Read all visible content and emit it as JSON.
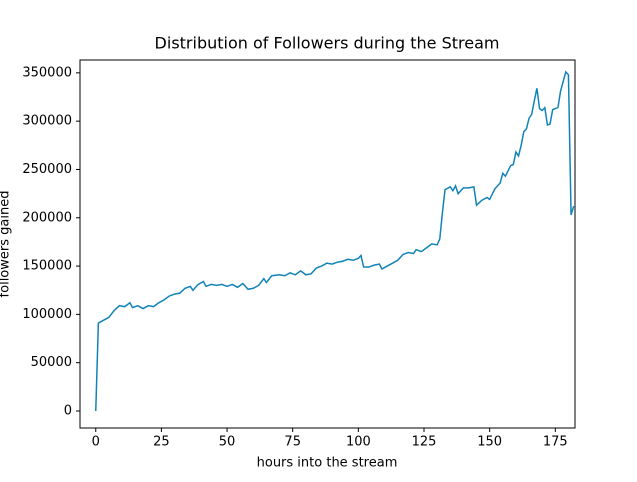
{
  "chart_data": {
    "type": "line",
    "title": "Distribution of Followers during the Stream",
    "x_label": "hours into the stream",
    "y_label": "followers gained",
    "x": [
      0,
      1,
      3,
      5,
      7,
      9,
      11,
      13,
      14,
      16,
      18,
      20,
      22,
      24,
      26,
      28,
      30,
      32,
      34,
      36,
      37,
      39,
      41,
      42,
      44,
      46,
      48,
      50,
      52,
      54,
      56,
      58,
      60,
      62,
      64,
      65,
      67,
      70,
      72,
      74,
      76,
      78,
      80,
      82,
      84,
      86,
      88,
      90,
      92,
      94,
      96,
      98,
      100,
      101,
      102,
      104,
      106,
      108,
      109,
      111,
      113,
      115,
      117,
      119,
      121,
      122,
      124,
      126,
      128,
      130,
      131,
      132,
      133,
      135,
      136,
      137,
      138,
      140,
      142,
      144,
      145,
      147,
      149,
      150,
      152,
      154,
      155,
      156,
      158,
      159,
      160,
      161,
      162,
      163,
      164,
      165,
      166,
      167,
      168,
      169,
      170,
      171,
      172,
      173,
      174,
      175,
      176,
      177,
      178,
      179,
      180,
      181,
      182
    ],
    "series": [
      {
        "name": "followers gained",
        "color": "#1283b8",
        "values": [
          0,
          91000,
          94000,
          97000,
          104000,
          109000,
          108000,
          112000,
          107000,
          109000,
          106000,
          109000,
          108000,
          112000,
          115000,
          119000,
          121000,
          122000,
          127000,
          129000,
          125000,
          131000,
          134000,
          129000,
          131000,
          130000,
          131000,
          129000,
          131000,
          128000,
          132000,
          126000,
          127000,
          130000,
          137000,
          133000,
          140000,
          141000,
          140000,
          143000,
          141000,
          145000,
          141000,
          142000,
          148000,
          150000,
          153000,
          152000,
          154000,
          155000,
          157000,
          156000,
          158000,
          161000,
          149000,
          149000,
          151000,
          152000,
          147000,
          150000,
          153000,
          156000,
          162000,
          164000,
          163000,
          167000,
          165000,
          169000,
          173000,
          172000,
          178000,
          205000,
          229000,
          232000,
          228000,
          233000,
          225000,
          231000,
          231000,
          232000,
          213000,
          218000,
          221000,
          219000,
          230000,
          236000,
          246000,
          243000,
          254000,
          255000,
          268000,
          264000,
          275000,
          289000,
          292000,
          303000,
          307000,
          321000,
          334000,
          313000,
          311000,
          314000,
          296000,
          297000,
          312000,
          313000,
          314000,
          331000,
          341000,
          351000,
          348000,
          203000,
          212000
        ]
      }
    ],
    "xlim": [
      -6,
      182.5
    ],
    "ylim": [
      -17600,
      363300
    ],
    "xticks": [
      0,
      25,
      50,
      75,
      100,
      125,
      150,
      175
    ],
    "yticks": [
      0,
      50000,
      100000,
      150000,
      200000,
      250000,
      300000,
      350000
    ]
  }
}
